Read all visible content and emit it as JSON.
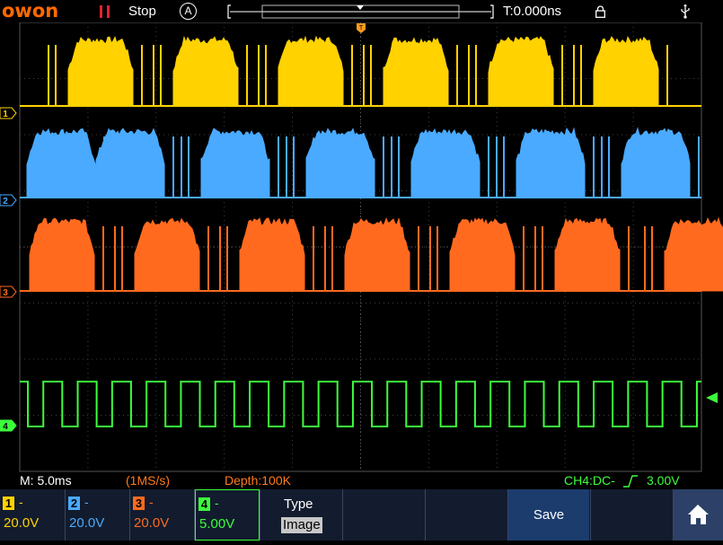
{
  "header": {
    "logo": "owon",
    "run_state": "Stop",
    "trigger_mode": "A",
    "trigger_time": "T:0.000ns"
  },
  "status": {
    "timebase": "M: 5.0ms",
    "sample_rate": "(1MS/s)",
    "depth": "Depth:100K",
    "trigger": "CH4:DC-",
    "trigger_level": "3.00V"
  },
  "channels": [
    {
      "num": "1",
      "coupling": "-",
      "scale": "20.0V",
      "color": "#ffd200"
    },
    {
      "num": "2",
      "coupling": "-",
      "scale": "20.0V",
      "color": "#4aaaff"
    },
    {
      "num": "3",
      "coupling": "-",
      "scale": "20.0V",
      "color": "#ff6a1f"
    },
    {
      "num": "4",
      "coupling": "-",
      "scale": "5.00V",
      "color": "#3cff3c"
    }
  ],
  "menu": {
    "type_label": "Type",
    "type_value": "Image",
    "save_label": "Save"
  },
  "colors": {
    "background": "#000000",
    "grid": "#4a4a4a",
    "menu_bg": "#121c2e",
    "logo": "#ff6a00"
  },
  "icons": [
    "run-stop-icon",
    "lock-icon",
    "usb-icon",
    "home-icon",
    "trigger-position-icon",
    "trigger-level-icon"
  ]
}
